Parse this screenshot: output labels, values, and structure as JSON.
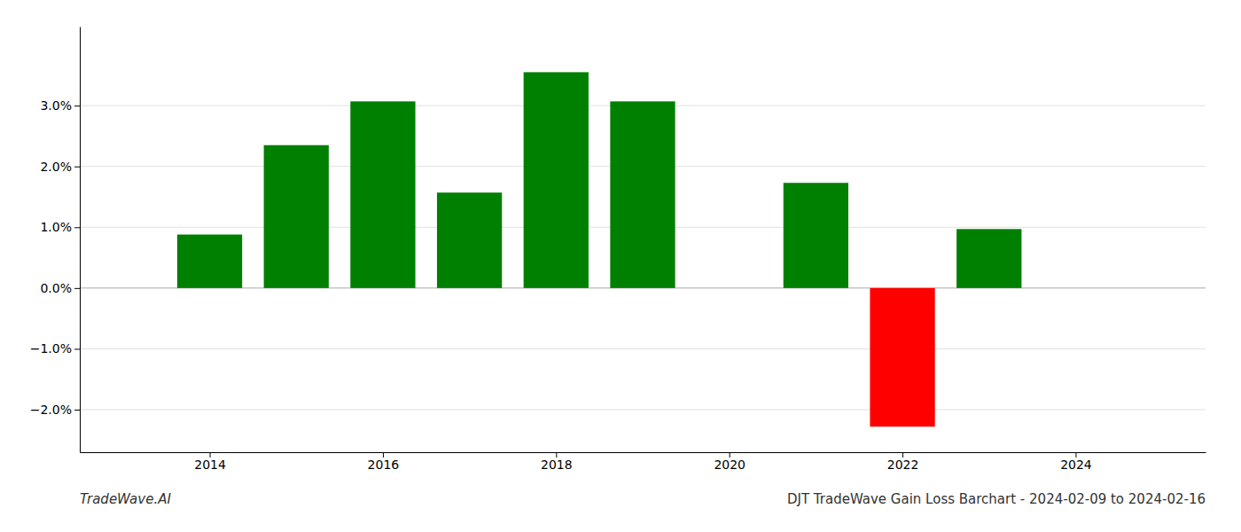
{
  "chart_data": {
    "type": "bar",
    "title": "DJT TradeWave Gain Loss Barchart - 2024-02-09 to 2024-02-16",
    "annotations": [
      "TradeWave.AI"
    ],
    "x": [
      2014,
      2015,
      2016,
      2017,
      2018,
      2019,
      2021,
      2022,
      2023
    ],
    "values": [
      0.0088,
      0.0235,
      0.0307,
      0.0157,
      0.0355,
      0.0307,
      0.0173,
      -0.0228,
      0.0097
    ],
    "colors": [
      "#008000",
      "#008000",
      "#008000",
      "#008000",
      "#008000",
      "#008000",
      "#008000",
      "#ff0000",
      "#008000"
    ],
    "xlim": [
      2012.5,
      2025.5
    ],
    "xticks": [
      2014,
      2016,
      2018,
      2020,
      2022,
      2024
    ],
    "ylim": [
      -0.027,
      0.043
    ],
    "yticks": [
      {
        "value": -0.02,
        "label": "−2.0%"
      },
      {
        "value": -0.01,
        "label": "−1.0%"
      },
      {
        "value": 0.0,
        "label": "0.0%"
      },
      {
        "value": 0.01,
        "label": "1.0%"
      },
      {
        "value": 0.02,
        "label": "2.0%"
      },
      {
        "value": 0.03,
        "label": "3.0%"
      }
    ],
    "grid": true
  }
}
